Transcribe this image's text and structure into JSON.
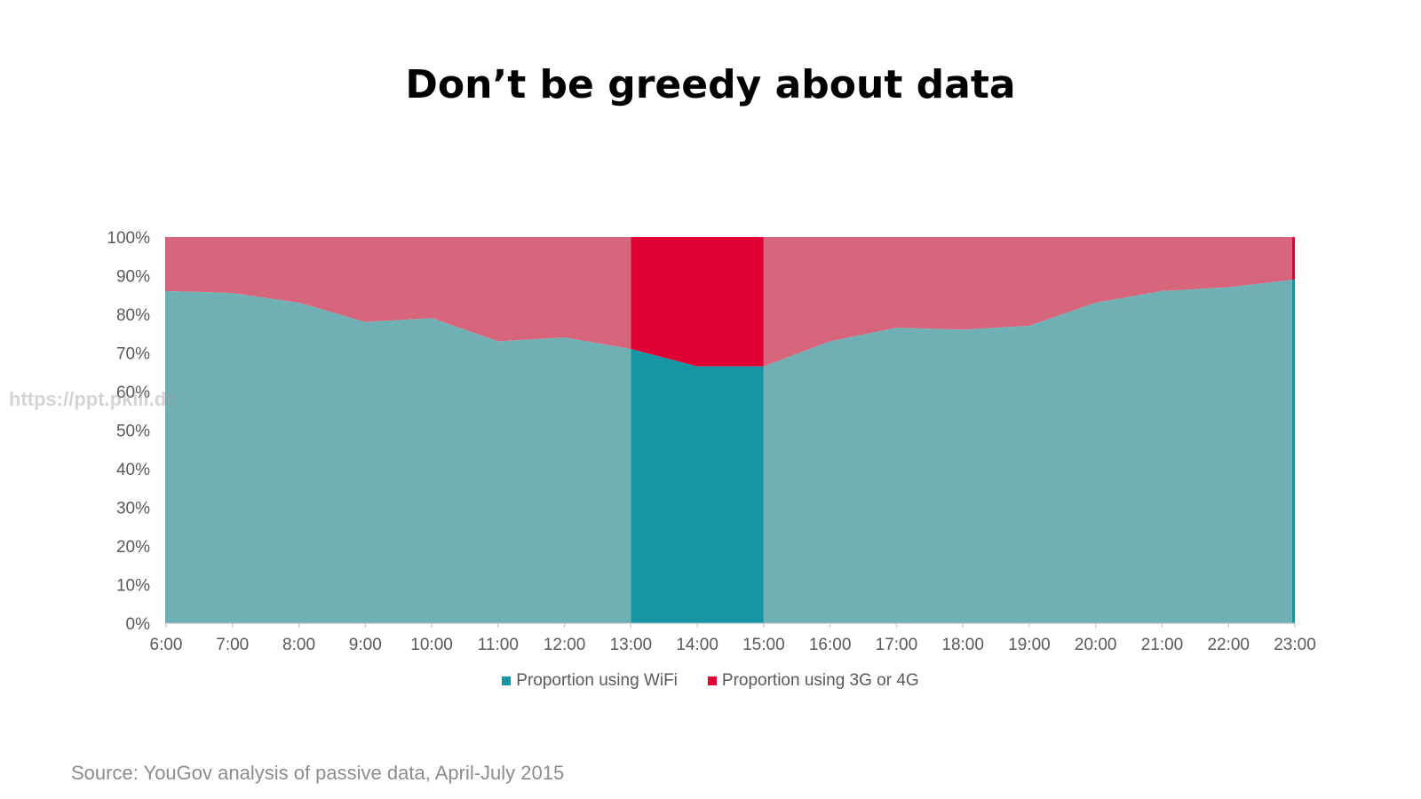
{
  "title": "Don’t be greedy about data",
  "watermark": "https://ppt.pkill.de",
  "source": "Source: YouGov analysis of passive data, April-July 2015",
  "colors": {
    "wifi": "#1497a3",
    "wifi_muted": "#6fb0b5",
    "mobile": "#e00034",
    "mobile_muted": "#d7667d"
  },
  "chart_data": {
    "type": "area",
    "stacked": true,
    "percent": true,
    "categories": [
      "6:00",
      "7:00",
      "8:00",
      "9:00",
      "10:00",
      "11:00",
      "12:00",
      "13:00",
      "14:00",
      "15:00",
      "16:00",
      "17:00",
      "18:00",
      "19:00",
      "20:00",
      "21:00",
      "22:00",
      "23:00"
    ],
    "series": [
      {
        "name": "Proportion using WiFi",
        "values": [
          86,
          85.5,
          83,
          78,
          79,
          73,
          74,
          71,
          66.5,
          66.5,
          73,
          76.5,
          76,
          77,
          83,
          86,
          87,
          89
        ]
      },
      {
        "name": "Proportion using 3G or 4G",
        "values": [
          14,
          14.5,
          17,
          22,
          21,
          27,
          26,
          29,
          33.5,
          33.5,
          27,
          23.5,
          24,
          23,
          17,
          14,
          13,
          11
        ]
      }
    ],
    "highlight_range": [
      "13:00",
      "15:00"
    ],
    "yticks": [
      "0%",
      "10%",
      "20%",
      "30%",
      "40%",
      "50%",
      "60%",
      "70%",
      "80%",
      "90%",
      "100%"
    ],
    "ylim": [
      0,
      100
    ],
    "legend_position": "bottom",
    "grid": false
  }
}
